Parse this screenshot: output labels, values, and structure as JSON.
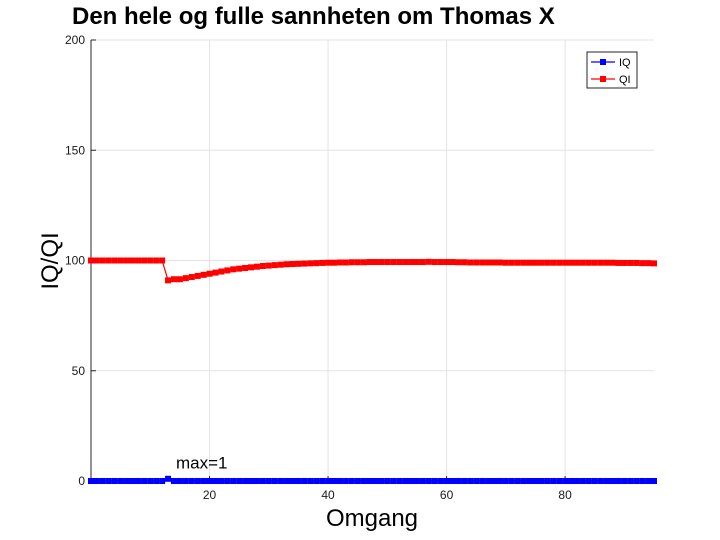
{
  "chart_data": {
    "type": "line",
    "title": "Den hele og fulle sannheten om Thomas X",
    "xlabel": "Omgang",
    "ylabel": "IQ/QI",
    "xlim": [
      0,
      95
    ],
    "ylim": [
      0,
      200
    ],
    "xticks": [
      20,
      40,
      60,
      80
    ],
    "yticks": [
      0,
      50,
      100,
      150,
      200
    ],
    "grid": true,
    "legend_position": "top-right",
    "annotation": {
      "text": "max=1",
      "x": 14,
      "y": 3
    },
    "series": [
      {
        "name": "IQ",
        "color": "#0000ff",
        "marker": "square",
        "x": [
          0,
          1,
          2,
          3,
          4,
          5,
          6,
          7,
          8,
          9,
          10,
          11,
          12,
          13,
          14,
          15,
          16,
          17,
          18,
          19,
          20,
          21,
          22,
          23,
          24,
          25,
          26,
          27,
          28,
          29,
          30,
          31,
          32,
          33,
          34,
          35,
          36,
          37,
          38,
          39,
          40,
          41,
          42,
          43,
          44,
          45,
          46,
          47,
          48,
          49,
          50,
          51,
          52,
          53,
          54,
          55,
          56,
          57,
          58,
          59,
          60,
          61,
          62,
          63,
          64,
          65,
          66,
          67,
          68,
          69,
          70,
          71,
          72,
          73,
          74,
          75,
          76,
          77,
          78,
          79,
          80,
          81,
          82,
          83,
          84,
          85,
          86,
          87,
          88,
          89,
          90,
          91,
          92,
          93,
          94,
          95
        ],
        "y": [
          0,
          0,
          0,
          0,
          0,
          0,
          0,
          0,
          0,
          0,
          0,
          0,
          0,
          1,
          0,
          0,
          0,
          0,
          0,
          0,
          0,
          0,
          0,
          0,
          0,
          0,
          0,
          0,
          0,
          0,
          0,
          0,
          0,
          0,
          0,
          0,
          0,
          0,
          0,
          0,
          0,
          0,
          0,
          0,
          0,
          0,
          0,
          0,
          0,
          0,
          0,
          0,
          0,
          0,
          0,
          0,
          0,
          0,
          0,
          0,
          0,
          0,
          0,
          0,
          0,
          0,
          0,
          0,
          0,
          0,
          0,
          0,
          0,
          0,
          0,
          0,
          0,
          0,
          0,
          0,
          0,
          0,
          0,
          0,
          0,
          0,
          0,
          0,
          0,
          0,
          0,
          0,
          0,
          0,
          0,
          0
        ]
      },
      {
        "name": "QI",
        "color": "#ff0000",
        "marker": "square",
        "x": [
          0,
          1,
          2,
          3,
          4,
          5,
          6,
          7,
          8,
          9,
          10,
          11,
          12,
          13,
          14,
          15,
          16,
          17,
          18,
          19,
          20,
          21,
          22,
          23,
          24,
          25,
          26,
          27,
          28,
          29,
          30,
          31,
          32,
          33,
          34,
          35,
          36,
          37,
          38,
          39,
          40,
          41,
          42,
          43,
          44,
          45,
          46,
          47,
          48,
          49,
          50,
          51,
          52,
          53,
          54,
          55,
          56,
          57,
          58,
          59,
          60,
          61,
          62,
          63,
          64,
          65,
          66,
          67,
          68,
          69,
          70,
          71,
          72,
          73,
          74,
          75,
          76,
          77,
          78,
          79,
          80,
          81,
          82,
          83,
          84,
          85,
          86,
          87,
          88,
          89,
          90,
          91,
          92,
          93,
          94,
          95
        ],
        "y": [
          100,
          100,
          100,
          100,
          100,
          100,
          100,
          100,
          100,
          100,
          100,
          100,
          100,
          91,
          91.5,
          91.5,
          92,
          92.5,
          93,
          93.5,
          94,
          94.5,
          95,
          95.5,
          96,
          96.3,
          96.6,
          96.9,
          97.2,
          97.5,
          97.7,
          97.9,
          98.1,
          98.3,
          98.4,
          98.5,
          98.6,
          98.7,
          98.8,
          98.9,
          99,
          99,
          99.1,
          99.1,
          99.2,
          99.2,
          99.2,
          99.3,
          99.3,
          99.3,
          99.3,
          99.3,
          99.3,
          99.3,
          99.3,
          99.3,
          99.3,
          99.4,
          99.3,
          99.3,
          99.3,
          99.3,
          99.2,
          99.2,
          99.1,
          99.1,
          99.1,
          99.1,
          99.1,
          99.1,
          99,
          99,
          99,
          99,
          99,
          99,
          99,
          99,
          99,
          99,
          99,
          99,
          99,
          99,
          99,
          99,
          99,
          99,
          99,
          98.9,
          98.9,
          98.9,
          98.9,
          98.8,
          98.8,
          98.7
        ]
      }
    ]
  }
}
